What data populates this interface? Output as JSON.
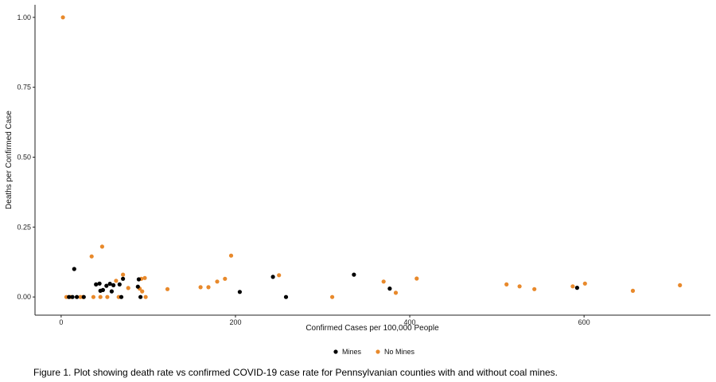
{
  "caption": "Figure 1. Plot showing death rate vs confirmed COVID-19 case rate for Pennsylvanian counties with and without coal mines.",
  "chart_data": {
    "type": "scatter",
    "title": "",
    "xlabel": "Confirmed Cases per 100,000 People",
    "ylabel": "Deaths per Confirmed Case",
    "xlim": [
      -30,
      745
    ],
    "ylim": [
      -0.065,
      1.045
    ],
    "x_ticks": [
      0,
      200,
      400,
      600
    ],
    "x_tick_labels": [
      "0",
      "200",
      "400",
      "600"
    ],
    "y_ticks": [
      0,
      0.25,
      0.5,
      0.75,
      1.0
    ],
    "y_tick_labels": [
      "0.00",
      "0.25",
      "0.50",
      "0.75",
      "1.00"
    ],
    "grid": false,
    "legend_position": "bottom",
    "series": [
      {
        "name": "Mines",
        "color": "#000000",
        "points": [
          [
            9,
            0.0
          ],
          [
            13,
            0.0
          ],
          [
            15,
            0.1
          ],
          [
            18,
            0.0
          ],
          [
            26,
            0.0
          ],
          [
            40,
            0.045
          ],
          [
            44,
            0.048
          ],
          [
            45,
            0.022
          ],
          [
            48,
            0.025
          ],
          [
            52,
            0.04
          ],
          [
            56,
            0.047
          ],
          [
            58,
            0.02
          ],
          [
            60,
            0.042
          ],
          [
            67,
            0.045
          ],
          [
            69,
            0.0
          ],
          [
            71,
            0.065
          ],
          [
            88,
            0.037
          ],
          [
            89,
            0.063
          ],
          [
            91,
            0.0
          ],
          [
            205,
            0.018
          ],
          [
            243,
            0.072
          ],
          [
            258,
            0.0
          ],
          [
            336,
            0.08
          ],
          [
            377,
            0.03
          ],
          [
            592,
            0.033
          ]
        ]
      },
      {
        "name": "No Mines",
        "color": "#e8892b",
        "points": [
          [
            2,
            1.0
          ],
          [
            6,
            0.0
          ],
          [
            11,
            0.0
          ],
          [
            22,
            0.0
          ],
          [
            25,
            0.0
          ],
          [
            35,
            0.145
          ],
          [
            37,
            0.0
          ],
          [
            45,
            0.0
          ],
          [
            47,
            0.18
          ],
          [
            53,
            0.0
          ],
          [
            63,
            0.058
          ],
          [
            66,
            0.0
          ],
          [
            71,
            0.08
          ],
          [
            77,
            0.032
          ],
          [
            90,
            0.03
          ],
          [
            92,
            0.065
          ],
          [
            93,
            0.02
          ],
          [
            96,
            0.068
          ],
          [
            97,
            0.0
          ],
          [
            122,
            0.028
          ],
          [
            160,
            0.035
          ],
          [
            169,
            0.035
          ],
          [
            179,
            0.055
          ],
          [
            188,
            0.065
          ],
          [
            195,
            0.148
          ],
          [
            250,
            0.078
          ],
          [
            311,
            0.0
          ],
          [
            370,
            0.055
          ],
          [
            384,
            0.015
          ],
          [
            408,
            0.066
          ],
          [
            511,
            0.045
          ],
          [
            526,
            0.038
          ],
          [
            543,
            0.028
          ],
          [
            587,
            0.038
          ],
          [
            601,
            0.048
          ],
          [
            656,
            0.022
          ],
          [
            710,
            0.042
          ]
        ]
      }
    ]
  }
}
